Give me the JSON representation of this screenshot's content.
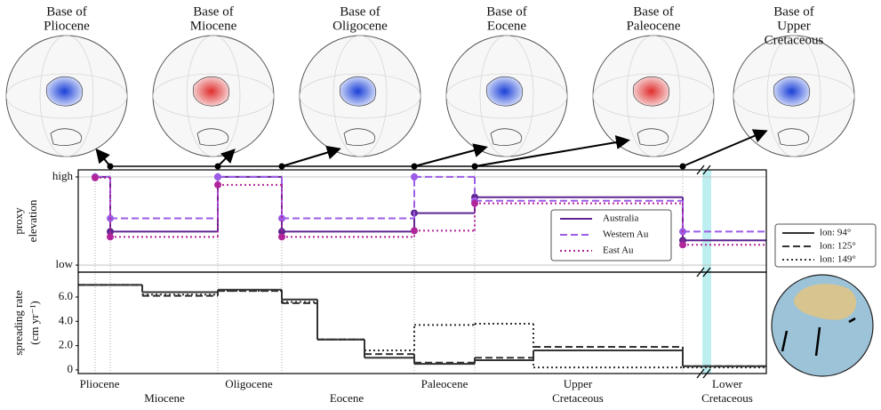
{
  "globes": [
    {
      "title": [
        "Base of",
        "Pliocene"
      ]
    },
    {
      "title": [
        "Base of",
        "Miocene"
      ]
    },
    {
      "title": [
        "Base of",
        "Oligocene"
      ]
    },
    {
      "title": [
        "Base of",
        "Eocene"
      ]
    },
    {
      "title": [
        "Base of",
        "Paleocene"
      ]
    },
    {
      "title": [
        "Base of",
        "Upper",
        "Cretaceous"
      ]
    }
  ],
  "chart_data": [
    {
      "type": "step",
      "ylabel": [
        "proxy",
        "elevation"
      ],
      "ylim": [
        -0.08,
        1.08
      ],
      "yticks": [
        {
          "value": 1,
          "label": "high"
        },
        {
          "value": 0,
          "label": "low"
        }
      ],
      "grid": true,
      "markers": true,
      "series": [
        {
          "name": "Australia",
          "color": "#5e2590",
          "linestyle": "solid",
          "values": [
            1.0,
            0.38,
            1.0,
            0.38,
            0.59,
            0.77,
            0.28
          ]
        },
        {
          "name": "Western Au",
          "color": "#9c5ce6",
          "linestyle": "dashed",
          "values": [
            1.0,
            0.53,
            1.0,
            0.53,
            1.0,
            0.73,
            0.38
          ]
        },
        {
          "name": "East Au",
          "color": "#b0269a",
          "linestyle": "dotted",
          "values": [
            0.99,
            0.32,
            0.91,
            0.32,
            0.39,
            0.7,
            0.23
          ]
        }
      ]
    },
    {
      "type": "step",
      "ylabel": [
        "spreading rate",
        "(cm yr⁻¹)"
      ],
      "ylim": [
        -0.3,
        8.05
      ],
      "yticks": [
        0,
        {
          "value": 2,
          "label": "2.0"
        },
        {
          "value": 4,
          "label": "4.0"
        },
        {
          "value": 6,
          "label": "6.0"
        }
      ],
      "grid": false,
      "markers": false,
      "epochs": [
        [
          "Pliocene"
        ],
        [
          "Miocene"
        ],
        [
          "Oligocene"
        ],
        [
          "Eocene"
        ],
        [
          "Paleocene"
        ],
        [
          "Upper",
          "Cretaceous"
        ],
        [
          "Lower",
          "Cretaceous"
        ]
      ],
      "series": [
        {
          "name": "lon: 94°",
          "color": "#333333",
          "linestyle": "solid",
          "values": [
            7.0,
            6.4,
            6.6,
            5.8,
            2.5,
            1.0,
            0.5,
            0.8,
            1.6,
            0.3
          ]
        },
        {
          "name": "lon: 125°",
          "color": "#333333",
          "linestyle": "dashed",
          "values": [
            7.0,
            6.1,
            6.5,
            5.5,
            2.5,
            1.3,
            0.6,
            1.0,
            1.9,
            0.3
          ]
        },
        {
          "name": "lon: 149°",
          "color": "#333333",
          "linestyle": "dotted",
          "values": [
            7.0,
            6.2,
            6.5,
            5.6,
            2.5,
            1.6,
            3.7,
            3.8,
            0.2,
            0.2
          ]
        }
      ]
    }
  ]
}
